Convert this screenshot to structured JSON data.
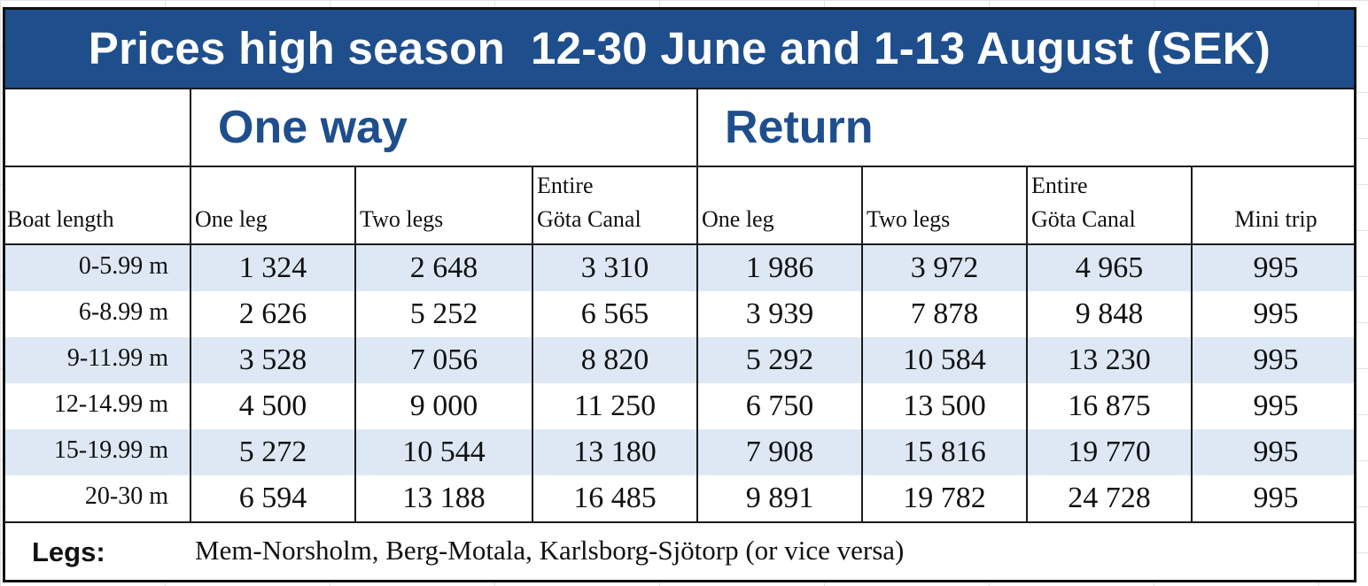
{
  "title": "Prices high season  12-30 June and 1-13 August (SEK)",
  "groups": {
    "one_way": "One way",
    "return": "Return"
  },
  "headers": {
    "boat_length": "Boat length",
    "ow_one_leg": "One leg",
    "ow_two_legs": "Two legs",
    "ow_entire": "Entire\nGöta Canal",
    "rt_one_leg": "One leg",
    "rt_two_legs": "Two legs",
    "rt_entire": "Entire\nGöta Canal",
    "mini_trip": "Mini trip"
  },
  "rows": [
    {
      "length": "0-5.99 m",
      "ow_one": "1 324",
      "ow_two": "2 648",
      "ow_entire": "3 310",
      "rt_one": "1 986",
      "rt_two": "3 972",
      "rt_entire": "4 965",
      "mini": "995"
    },
    {
      "length": "6-8.99 m",
      "ow_one": "2 626",
      "ow_two": "5 252",
      "ow_entire": "6 565",
      "rt_one": "3 939",
      "rt_two": "7 878",
      "rt_entire": "9 848",
      "mini": "995"
    },
    {
      "length": "9-11.99 m",
      "ow_one": "3 528",
      "ow_two": "7 056",
      "ow_entire": "8 820",
      "rt_one": "5 292",
      "rt_two": "10 584",
      "rt_entire": "13 230",
      "mini": "995"
    },
    {
      "length": "12-14.99 m",
      "ow_one": "4 500",
      "ow_two": "9 000",
      "ow_entire": "11 250",
      "rt_one": "6 750",
      "rt_two": "13 500",
      "rt_entire": "16 875",
      "mini": "995"
    },
    {
      "length": "15-19.99 m",
      "ow_one": "5 272",
      "ow_two": "10 544",
      "ow_entire": "13 180",
      "rt_one": "7 908",
      "rt_two": "15 816",
      "rt_entire": "19 770",
      "mini": "995"
    },
    {
      "length": "20-30 m",
      "ow_one": "6 594",
      "ow_two": "13 188",
      "ow_entire": "16 485",
      "rt_one": "9 891",
      "rt_two": "19 782",
      "rt_entire": "24 728",
      "mini": "995"
    }
  ],
  "legs": {
    "label": "Legs:",
    "text": "Mem-Norsholm, Berg-Motala, Karlsborg-Sjötorp (or vice versa)"
  },
  "colors": {
    "title_background": "#1f4e8c",
    "title_text": "#ffffff",
    "group_heading": "#1f4e8c",
    "row_shade": "#dde8f4",
    "border": "#1b1b1b"
  }
}
